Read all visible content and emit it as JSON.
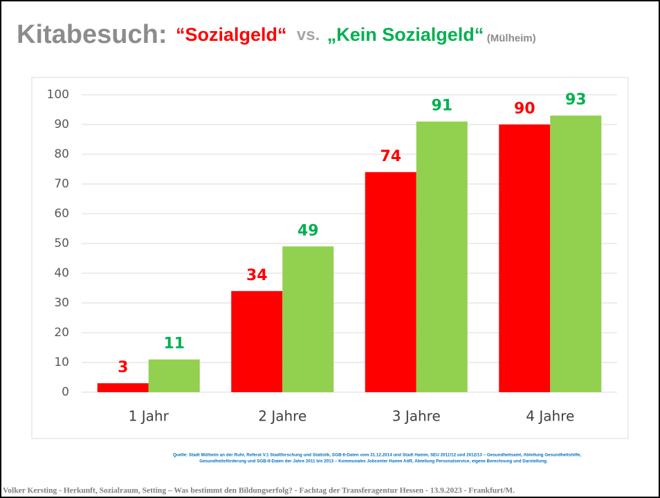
{
  "chart_data": {
    "type": "bar",
    "title": [
      {
        "text": "Kitabesuch:",
        "color": "#8c8c8c"
      },
      {
        "text": "“Sozialgeld“",
        "color": "#ff0000"
      },
      {
        "text": "vs.",
        "color": "#a6a6a6"
      },
      {
        "text": "„Kein Sozialgeld“",
        "color": "#00b050"
      },
      {
        "text": "(Mülheim)",
        "color": "#8c8c8c"
      }
    ],
    "categories": [
      "1 Jahr",
      "2 Jahre",
      "3 Jahre",
      "4 Jahre"
    ],
    "series": [
      {
        "color": "#ff0000",
        "values": [
          3,
          34,
          74,
          90
        ]
      },
      {
        "color": "#92d050",
        "label_color": "#00b050",
        "values": [
          11,
          49,
          91,
          93
        ]
      }
    ],
    "ylim": [
      0,
      100
    ],
    "yticks": [
      0,
      10,
      20,
      30,
      40,
      50,
      60,
      70,
      80,
      90,
      100
    ],
    "grid": true,
    "source": [
      "Quelle: Stadt Mülheim an der Ruhr, Referat V.1 Stadtforschung und Statistik, SGB-II-Daten vom 31.12.2014 und Stadt Hamm, SEU 2011/12 und 2012/13 – Gesundheitsamt, Abteilung Gesundheitshilfe,",
      "Gesundheitsförderung und SGB-II-Daten der Jahre 2011 bis 2013 – Kommunales Jobcenter Hamm AöR, Abteilung Personalservice, eigene Berechnung und Darstellung."
    ]
  },
  "footer": "Volker Kersting - Herkunft, Sozialraum, Setting – Was bestimmt den Bildungserfolg? - Fachtag der Transferagentur Hessen - 13.9.2023 - Frankfurt/M."
}
